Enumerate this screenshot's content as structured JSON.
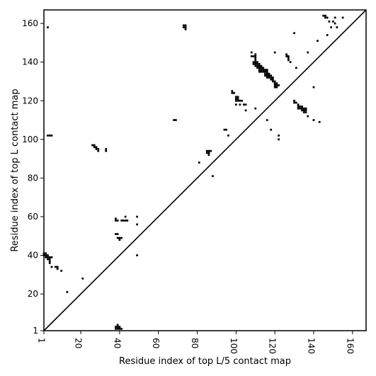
{
  "chart_data": {
    "type": "scatter",
    "title": "",
    "xlabel": "Residue index of top L/5 contact map",
    "ylabel": "Residue index of top L contact map",
    "xlim": [
      1,
      167
    ],
    "ylim": [
      1,
      167
    ],
    "x_ticks": [
      1,
      20,
      40,
      60,
      80,
      100,
      120,
      140,
      160
    ],
    "x_tick_labels": [
      "1",
      "20",
      "40",
      "60",
      "80",
      "100",
      "120",
      "140",
      "160"
    ],
    "y_ticks": [
      1,
      20,
      40,
      60,
      80,
      100,
      120,
      140,
      160
    ],
    "y_tick_labels": [
      "1",
      "20",
      "40",
      "60",
      "80",
      "100",
      "120",
      "140",
      "160"
    ],
    "diagonal": true,
    "grid": false,
    "lower_series": {
      "name": "",
      "points": [
        [
          38,
          3
        ],
        [
          39,
          3
        ],
        [
          39,
          2
        ],
        [
          40,
          2
        ],
        [
          40,
          3
        ],
        [
          41,
          2
        ],
        [
          38,
          2
        ],
        [
          39,
          4
        ]
      ]
    },
    "upper_series": {
      "name": "",
      "points": [
        [
          1,
          41
        ],
        [
          1,
          40
        ],
        [
          2,
          41
        ],
        [
          2,
          40
        ],
        [
          2,
          39
        ],
        [
          3,
          40
        ],
        [
          3,
          39
        ],
        [
          3,
          38
        ],
        [
          4,
          39
        ],
        [
          4,
          38
        ],
        [
          4,
          37
        ],
        [
          4,
          36
        ],
        [
          5,
          39
        ],
        [
          5,
          34
        ],
        [
          7,
          34
        ],
        [
          8,
          34
        ],
        [
          8,
          33
        ],
        [
          10,
          32
        ],
        [
          13,
          21
        ],
        [
          21,
          28
        ],
        [
          3,
          158
        ],
        [
          3,
          102
        ],
        [
          4,
          102
        ],
        [
          5,
          102
        ],
        [
          26,
          97
        ],
        [
          27,
          97
        ],
        [
          27,
          96
        ],
        [
          28,
          96
        ],
        [
          28,
          95
        ],
        [
          29,
          95
        ],
        [
          29,
          94
        ],
        [
          33,
          95
        ],
        [
          33,
          94
        ],
        [
          38,
          59
        ],
        [
          38,
          58
        ],
        [
          39,
          58
        ],
        [
          38,
          51
        ],
        [
          39,
          51
        ],
        [
          39,
          49
        ],
        [
          40,
          49
        ],
        [
          40,
          48
        ],
        [
          41,
          49
        ],
        [
          41,
          58
        ],
        [
          42,
          58
        ],
        [
          43,
          58
        ],
        [
          43,
          60
        ],
        [
          44,
          58
        ],
        [
          49,
          60
        ],
        [
          49,
          56
        ],
        [
          49,
          40
        ],
        [
          68,
          110
        ],
        [
          69,
          110
        ],
        [
          73,
          159
        ],
        [
          73,
          158
        ],
        [
          74,
          159
        ],
        [
          74,
          158
        ],
        [
          74,
          157
        ],
        [
          81,
          88
        ],
        [
          85,
          94
        ],
        [
          85,
          93
        ],
        [
          86,
          94
        ],
        [
          86,
          93
        ],
        [
          86,
          92
        ],
        [
          87,
          94
        ],
        [
          88,
          81
        ],
        [
          94,
          105
        ],
        [
          95,
          105
        ],
        [
          96,
          102
        ],
        [
          98,
          125
        ],
        [
          98,
          124
        ],
        [
          99,
          124
        ],
        [
          100,
          122
        ],
        [
          100,
          121
        ],
        [
          100,
          120
        ],
        [
          100,
          118
        ],
        [
          101,
          122
        ],
        [
          101,
          121
        ],
        [
          101,
          120
        ],
        [
          102,
          120
        ],
        [
          102,
          118
        ],
        [
          103,
          120
        ],
        [
          104,
          118
        ],
        [
          105,
          115
        ],
        [
          105,
          118
        ],
        [
          108,
          145
        ],
        [
          108,
          143
        ],
        [
          109,
          143
        ],
        [
          109,
          140
        ],
        [
          109,
          139
        ],
        [
          110,
          144
        ],
        [
          110,
          143
        ],
        [
          110,
          142
        ],
        [
          110,
          141
        ],
        [
          110,
          140
        ],
        [
          110,
          139
        ],
        [
          110,
          138
        ],
        [
          110,
          116
        ],
        [
          111,
          140
        ],
        [
          111,
          139
        ],
        [
          111,
          138
        ],
        [
          111,
          137
        ],
        [
          112,
          139
        ],
        [
          112,
          138
        ],
        [
          112,
          137
        ],
        [
          112,
          136
        ],
        [
          112,
          135
        ],
        [
          113,
          138
        ],
        [
          113,
          137
        ],
        [
          113,
          136
        ],
        [
          113,
          135
        ],
        [
          114,
          137
        ],
        [
          114,
          136
        ],
        [
          114,
          135
        ],
        [
          115,
          136
        ],
        [
          115,
          135
        ],
        [
          115,
          134
        ],
        [
          115,
          133
        ],
        [
          116,
          136
        ],
        [
          116,
          135
        ],
        [
          116,
          134
        ],
        [
          116,
          133
        ],
        [
          116,
          132
        ],
        [
          116,
          110
        ],
        [
          117,
          134
        ],
        [
          117,
          133
        ],
        [
          117,
          132
        ],
        [
          118,
          133
        ],
        [
          118,
          132
        ],
        [
          118,
          131
        ],
        [
          118,
          105
        ],
        [
          119,
          132
        ],
        [
          119,
          131
        ],
        [
          119,
          130
        ],
        [
          120,
          145
        ],
        [
          120,
          130
        ],
        [
          120,
          129
        ],
        [
          120,
          128
        ],
        [
          120,
          127
        ],
        [
          121,
          129
        ],
        [
          121,
          128
        ],
        [
          121,
          127
        ],
        [
          122,
          128
        ],
        [
          122,
          102
        ],
        [
          122,
          100
        ],
        [
          126,
          144
        ],
        [
          126,
          143
        ],
        [
          127,
          143
        ],
        [
          127,
          142
        ],
        [
          127,
          141
        ],
        [
          128,
          140
        ],
        [
          130,
          155
        ],
        [
          130,
          120
        ],
        [
          130,
          119
        ],
        [
          131,
          137
        ],
        [
          131,
          119
        ],
        [
          132,
          118
        ],
        [
          132,
          117
        ],
        [
          132,
          116
        ],
        [
          133,
          117
        ],
        [
          133,
          116
        ],
        [
          134,
          117
        ],
        [
          134,
          116
        ],
        [
          134,
          115
        ],
        [
          135,
          116
        ],
        [
          135,
          115
        ],
        [
          135,
          114
        ],
        [
          136,
          116
        ],
        [
          136,
          115
        ],
        [
          136,
          114
        ],
        [
          137,
          145
        ],
        [
          137,
          112
        ],
        [
          140,
          127
        ],
        [
          140,
          110
        ],
        [
          142,
          151
        ],
        [
          143,
          109
        ],
        [
          145,
          164
        ],
        [
          146,
          164
        ],
        [
          146,
          163
        ],
        [
          147,
          163
        ],
        [
          147,
          154
        ],
        [
          148,
          161
        ],
        [
          149,
          158
        ],
        [
          150,
          161
        ],
        [
          151,
          163
        ],
        [
          151,
          160
        ],
        [
          152,
          158
        ],
        [
          155,
          163
        ]
      ]
    }
  }
}
